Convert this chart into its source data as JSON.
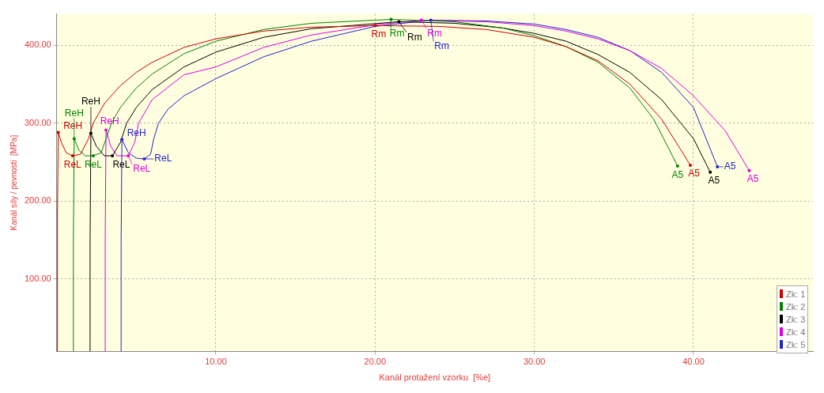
{
  "chart_data": {
    "type": "line",
    "xlabel": "Kanál protažení vzorku  [%e]",
    "ylabel": "Kanál síly / pevnosti  [MPa]",
    "xlim": [
      0,
      47.5
    ],
    "ylim": [
      7,
      440
    ],
    "xticks": [
      {
        "value": 10,
        "label": "10.00"
      },
      {
        "value": 20,
        "label": "20.00"
      },
      {
        "value": 30,
        "label": "30.00"
      },
      {
        "value": 40,
        "label": "40.00"
      }
    ],
    "yticks": [
      {
        "value": 100,
        "label": "100.00"
      },
      {
        "value": 200,
        "label": "200.00"
      },
      {
        "value": 300,
        "label": "300.00"
      },
      {
        "value": 400,
        "label": "400.00"
      }
    ],
    "grid": true,
    "legend": "bottom right",
    "marker": "none",
    "line_style": "solid",
    "series": [
      {
        "name": "Zk: 1",
        "color": "#cc0000",
        "x": [
          0.05,
          0.05,
          0.1,
          0.3,
          0.6,
          1,
          1.5,
          2,
          2.3,
          3,
          4,
          5,
          6,
          8,
          10,
          13,
          16,
          20,
          24,
          27,
          30,
          32,
          34,
          36,
          38,
          39.8
        ],
        "values": [
          7,
          180,
          288,
          275,
          262,
          258,
          260,
          280,
          300,
          325,
          348,
          365,
          378,
          397,
          408,
          418,
          423,
          425,
          424,
          420,
          410,
          398,
          380,
          350,
          305,
          246
        ]
      },
      {
        "name": "Zk: 2",
        "color": "#008000",
        "x": [
          1.05,
          1.05,
          1.1,
          1.4,
          1.8,
          2.3,
          2.8,
          3.1,
          3.45,
          4,
          5,
          6,
          8,
          10,
          13,
          16,
          21,
          25,
          28,
          30,
          32,
          34,
          36,
          37.5,
          39
        ],
        "values": [
          7,
          150,
          280,
          265,
          258,
          258,
          262,
          280,
          300,
          320,
          345,
          363,
          389,
          405,
          420,
          428,
          433,
          430,
          422,
          412,
          398,
          378,
          345,
          305,
          245
        ]
      },
      {
        "name": "Zk: 3",
        "color": "#000000",
        "x": [
          2.1,
          2.1,
          2.15,
          2.5,
          3,
          3.5,
          4,
          4.4,
          5,
          6,
          8,
          10,
          13,
          16,
          21.5,
          25,
          28,
          30,
          32,
          34,
          36,
          38,
          40,
          41.05
        ],
        "values": [
          7,
          150,
          287,
          270,
          258,
          258,
          275,
          300,
          320,
          343,
          372,
          391,
          410,
          421,
          430,
          428,
          422,
          415,
          405,
          388,
          365,
          330,
          280,
          237
        ]
      },
      {
        "name": "Zk: 4",
        "color": "#dd00dd",
        "x": [
          3.05,
          3.05,
          3.1,
          3.4,
          3.8,
          4.5,
          4.9,
          5.15,
          6,
          8,
          10,
          13,
          16,
          20,
          22.9,
          27,
          30,
          32,
          34,
          36,
          38,
          40,
          42,
          43.5
        ],
        "values": [
          7,
          150,
          291,
          270,
          258,
          258,
          275,
          300,
          330,
          362,
          372,
          397,
          413,
          426,
          432,
          430,
          425,
          418,
          408,
          393,
          370,
          335,
          290,
          239
        ]
      },
      {
        "name": "Zk: 5",
        "color": "#2222cc",
        "x": [
          4.05,
          4.05,
          4.1,
          4.5,
          5,
          5.5,
          5.9,
          6.1,
          6.4,
          7,
          8,
          10,
          13,
          16,
          20,
          23.5,
          27,
          30,
          32,
          34,
          36,
          38,
          40,
          41.5
        ],
        "values": [
          7,
          150,
          279,
          262,
          255,
          254,
          260,
          280,
          300,
          318,
          335,
          357,
          385,
          405,
          424,
          432,
          431,
          427,
          420,
          410,
          393,
          365,
          320,
          244
        ]
      }
    ],
    "annotations": [
      {
        "text": "ReH",
        "x": 0.1,
        "y": 288
      },
      {
        "text": "ReL",
        "x": 1,
        "y": 258
      },
      {
        "text": "Rm",
        "x": 20,
        "y": 425
      },
      {
        "text": "A5",
        "x": 39.8,
        "y": 246
      },
      {
        "text": "ReH",
        "x": 1.1,
        "y": 280
      },
      {
        "text": "ReL",
        "x": 2.3,
        "y": 258
      },
      {
        "text": "Rm",
        "x": 21,
        "y": 433
      },
      {
        "text": "A5",
        "x": 39,
        "y": 245
      },
      {
        "text": "ReH",
        "x": 2.15,
        "y": 287
      },
      {
        "text": "ReL",
        "x": 3.5,
        "y": 258
      },
      {
        "text": "Rm",
        "x": 21.5,
        "y": 430
      },
      {
        "text": "A5",
        "x": 41.05,
        "y": 237
      },
      {
        "text": "ReH",
        "x": 3.1,
        "y": 291
      },
      {
        "text": "ReL",
        "x": 4.5,
        "y": 258
      },
      {
        "text": "Rm",
        "x": 22.9,
        "y": 432
      },
      {
        "text": "A5",
        "x": 43.5,
        "y": 239
      },
      {
        "text": "ReH",
        "x": 4.1,
        "y": 279
      },
      {
        "text": "ReL",
        "x": 5.5,
        "y": 254
      },
      {
        "text": "Rm",
        "x": 23.5,
        "y": 432
      },
      {
        "text": "A5",
        "x": 41.5,
        "y": 244
      }
    ]
  }
}
